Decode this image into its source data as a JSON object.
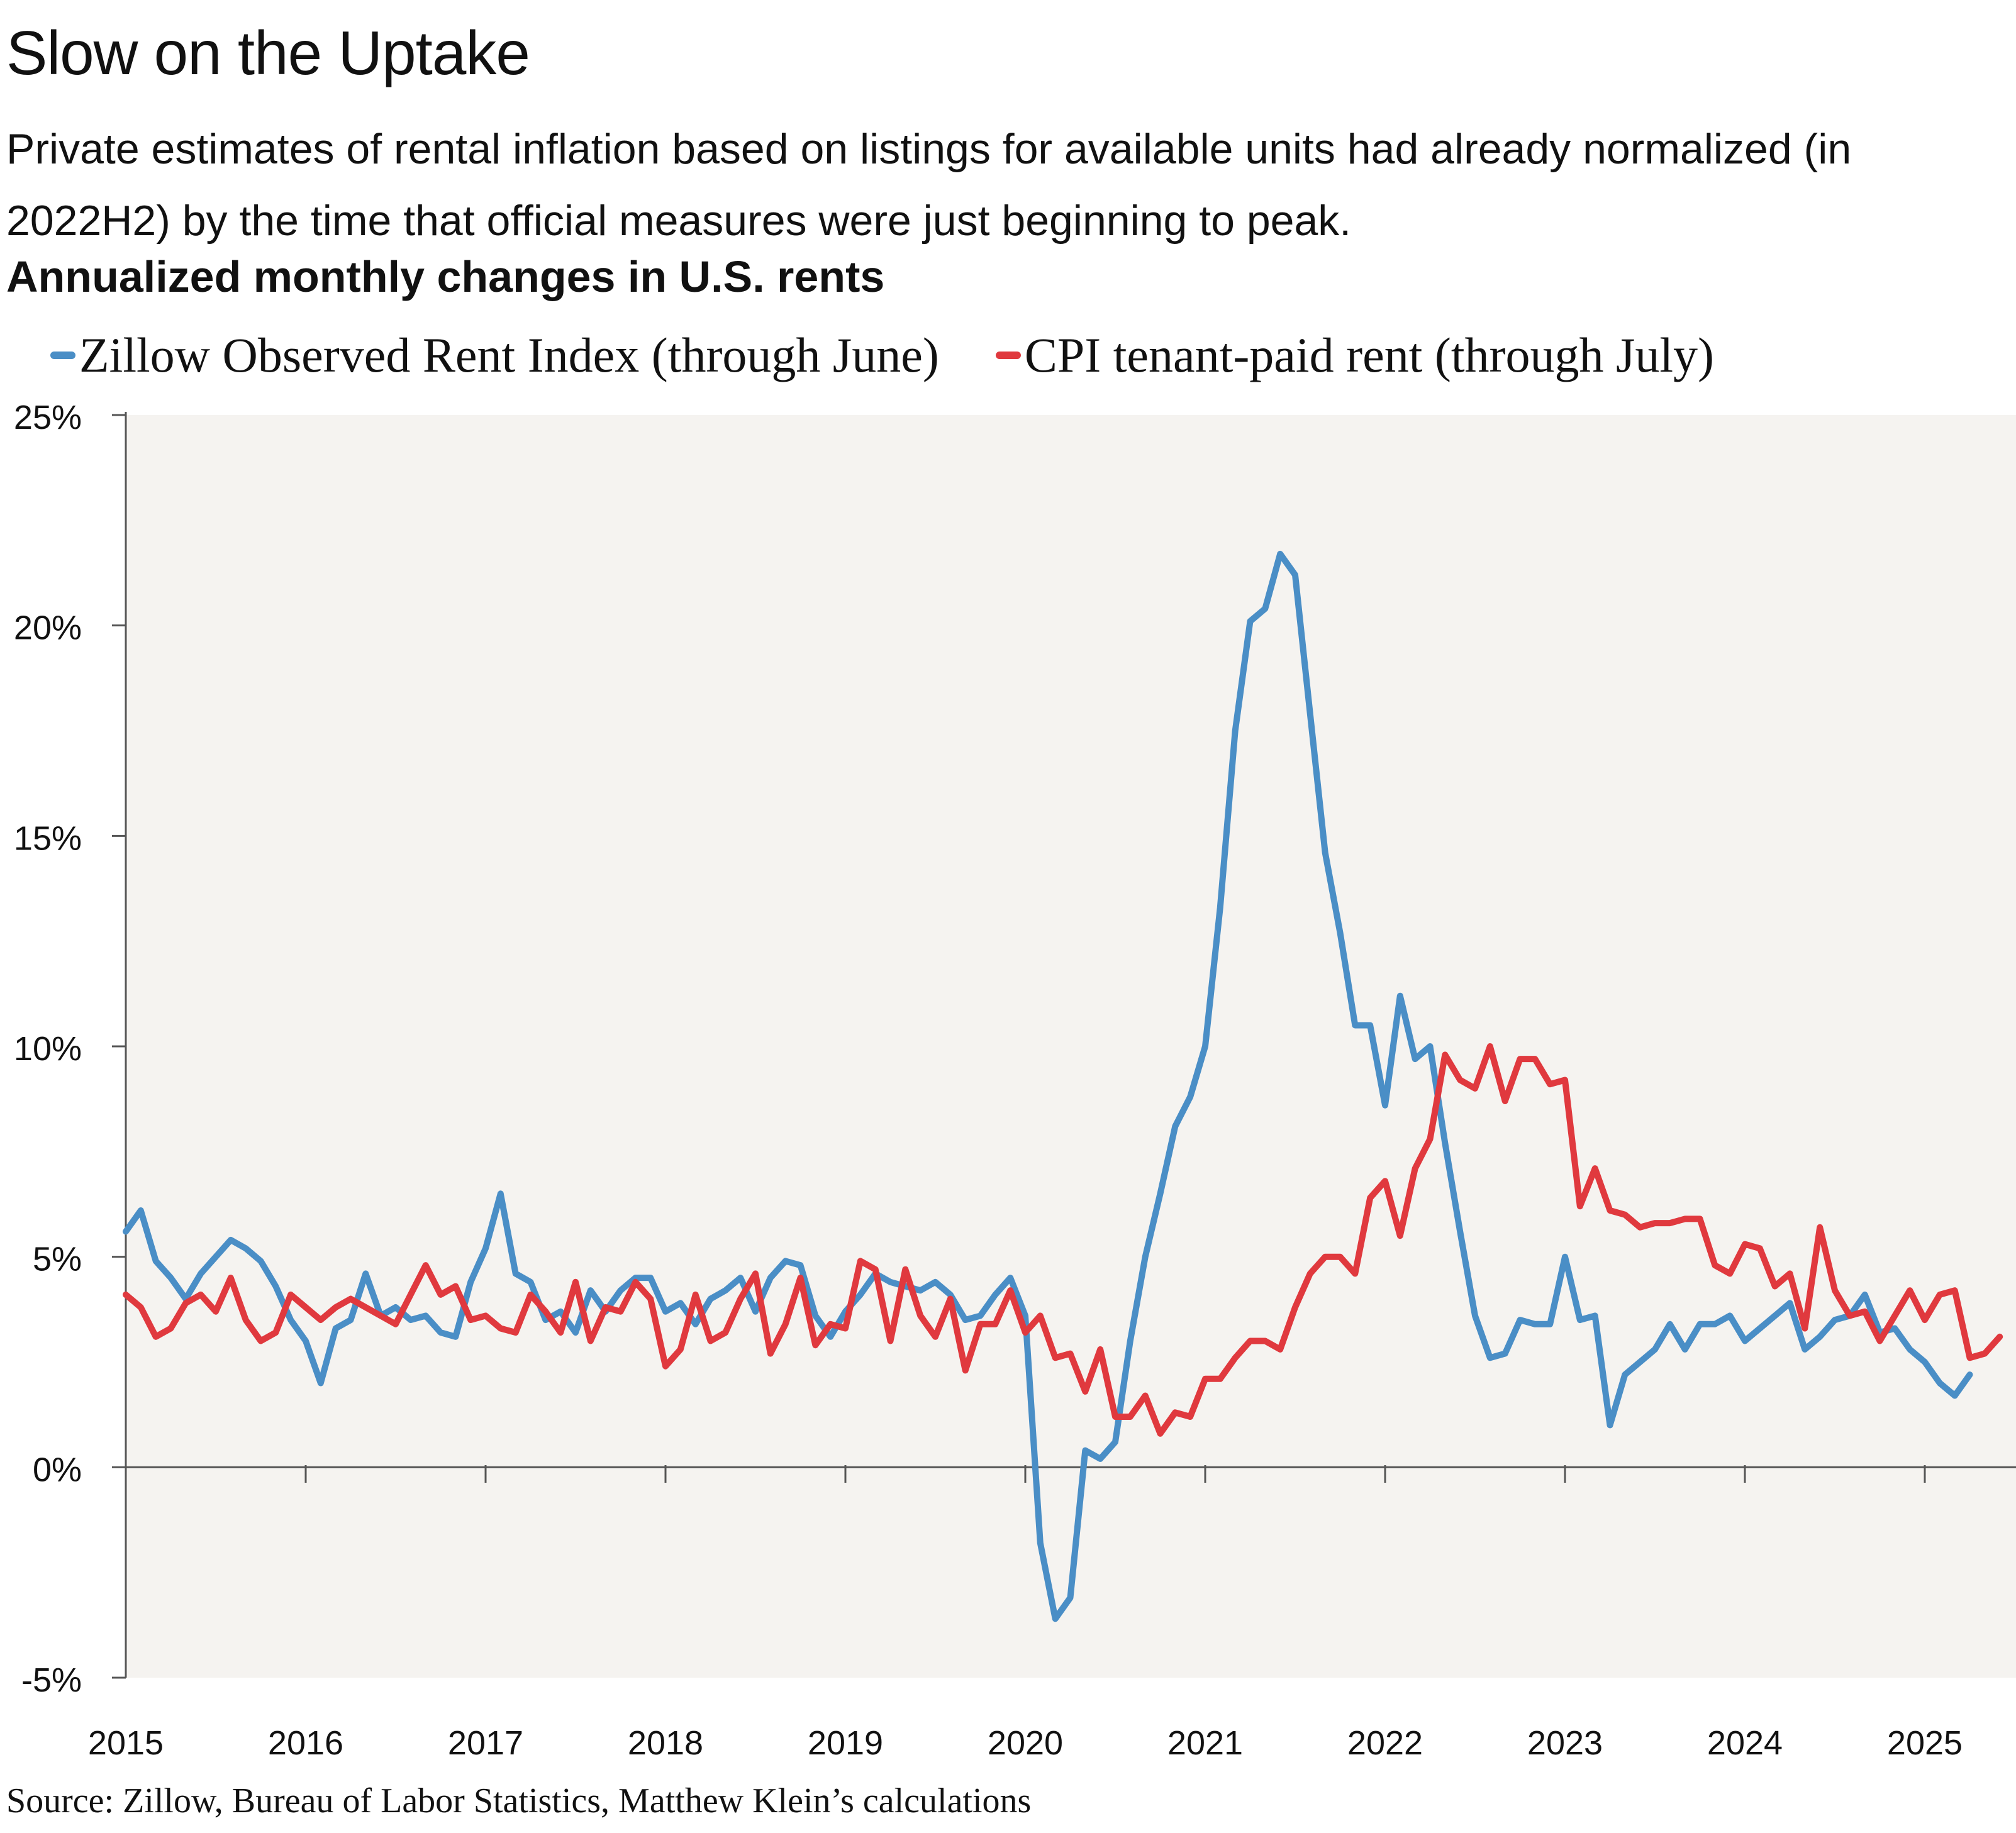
{
  "title": "Slow on the Uptake",
  "subtitle": "Private estimates of rental inflation based on listings for available units had already normalized (in 2022H2) by the time that official measures were just beginning to peak.",
  "chart_heading": "Annualized monthly changes in U.S. rents",
  "source": "Source: Zillow, Bureau of Labor Statistics, Matthew Klein’s calculations",
  "colors": {
    "zillow": "#4a8ec6",
    "cpi": "#e0393e",
    "plot_bg": "#f5f3f0",
    "axis": "#555555"
  },
  "chart_data": {
    "type": "line",
    "x_unit": "month",
    "x_start": "2015-01",
    "xlim": [
      "2015-01",
      "2025-07"
    ],
    "ylim": [
      -5,
      25
    ],
    "ylabel": "",
    "xlabel": "",
    "grid": false,
    "legend_position": "top",
    "y_ticks": [
      -5,
      0,
      5,
      10,
      15,
      20,
      25
    ],
    "y_tick_labels": [
      "-5%",
      "0%",
      "5%",
      "10%",
      "15%",
      "20%",
      "25%"
    ],
    "x_tick_labels": [
      "2015",
      "2016",
      "2017",
      "2018",
      "2019",
      "2020",
      "2021",
      "2022",
      "2023",
      "2024",
      "2025"
    ],
    "series": [
      {
        "name": "Zillow Observed Rent Index (through June)",
        "color": "#4a8ec6",
        "values": [
          5.6,
          6.1,
          4.9,
          4.5,
          4.0,
          4.6,
          5.0,
          5.4,
          5.2,
          4.9,
          4.3,
          3.5,
          3.0,
          2.0,
          3.3,
          3.5,
          4.6,
          3.6,
          3.8,
          3.5,
          3.6,
          3.2,
          3.1,
          4.4,
          5.2,
          6.5,
          4.6,
          4.4,
          3.5,
          3.7,
          3.2,
          4.2,
          3.7,
          4.2,
          4.5,
          4.5,
          3.7,
          3.9,
          3.4,
          4.0,
          4.2,
          4.5,
          3.7,
          4.5,
          4.9,
          4.8,
          3.6,
          3.1,
          3.7,
          4.1,
          4.6,
          4.4,
          4.3,
          4.2,
          4.4,
          4.1,
          3.5,
          3.6,
          4.1,
          4.5,
          3.6,
          -1.8,
          -3.6,
          -3.1,
          0.4,
          0.2,
          0.6,
          3.0,
          5.0,
          6.5,
          8.1,
          8.8,
          10.0,
          13.3,
          17.5,
          20.1,
          20.4,
          21.7,
          21.2,
          17.9,
          14.6,
          12.7,
          10.5,
          10.5,
          8.6,
          11.2,
          9.7,
          10.0,
          7.7,
          5.6,
          3.6,
          2.6,
          2.7,
          3.5,
          3.4,
          3.4,
          5.0,
          3.5,
          3.6,
          1.0,
          2.2,
          2.5,
          2.8,
          3.4,
          2.8,
          3.4,
          3.4,
          3.6,
          3.0,
          3.3,
          3.6,
          3.9,
          2.8,
          3.1,
          3.5,
          3.6,
          4.1,
          3.2,
          3.3,
          2.8,
          2.5,
          2.0,
          1.7,
          2.2
        ]
      },
      {
        "name": "CPI tenant-paid rent (through July)",
        "color": "#e0393e",
        "values": [
          4.1,
          3.8,
          3.1,
          3.3,
          3.9,
          4.1,
          3.7,
          4.5,
          3.5,
          3.0,
          3.2,
          4.1,
          3.8,
          3.5,
          3.8,
          4.0,
          3.8,
          3.6,
          3.4,
          4.1,
          4.8,
          4.1,
          4.3,
          3.5,
          3.6,
          3.3,
          3.2,
          4.1,
          3.7,
          3.2,
          4.4,
          3.0,
          3.8,
          3.7,
          4.4,
          4.0,
          2.4,
          2.8,
          4.1,
          3.0,
          3.2,
          4.0,
          4.6,
          2.7,
          3.4,
          4.5,
          2.9,
          3.4,
          3.3,
          4.9,
          4.7,
          3.0,
          4.7,
          3.6,
          3.1,
          4.0,
          2.3,
          3.4,
          3.4,
          4.2,
          3.2,
          3.6,
          2.6,
          2.7,
          1.8,
          2.8,
          1.2,
          1.2,
          1.7,
          0.8,
          1.3,
          1.2,
          2.1,
          2.1,
          2.6,
          3.0,
          3.0,
          2.8,
          3.8,
          4.6,
          5.0,
          5.0,
          4.6,
          6.4,
          6.8,
          5.5,
          7.1,
          7.8,
          9.8,
          9.2,
          9.0,
          10.0,
          8.7,
          9.7,
          9.7,
          9.1,
          9.2,
          6.2,
          7.1,
          6.1,
          6.0,
          5.7,
          5.8,
          5.8,
          5.9,
          5.9,
          4.8,
          4.6,
          5.3,
          5.2,
          4.3,
          4.6,
          3.3,
          5.7,
          4.2,
          3.6,
          3.7,
          3.0,
          3.6,
          4.2,
          3.5,
          4.1,
          4.2,
          2.6,
          2.7,
          3.1
        ]
      }
    ]
  }
}
